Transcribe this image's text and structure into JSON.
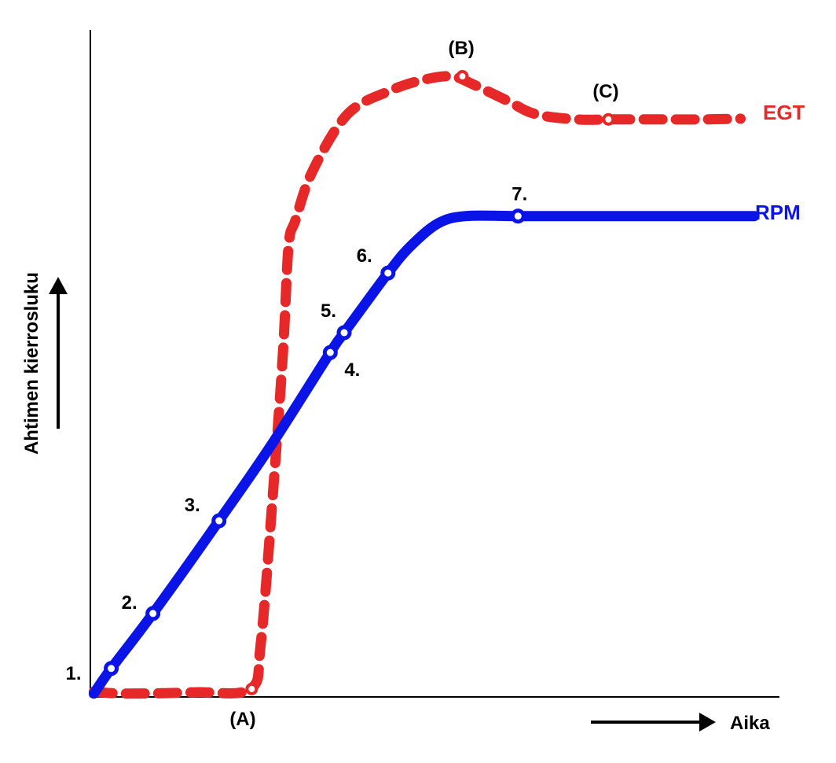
{
  "chart_data": {
    "type": "line",
    "title": "",
    "xlabel": "Aika",
    "ylabel": "Ahtimen kierrosluku",
    "xlim": [
      0,
      100
    ],
    "ylim": [
      0,
      100
    ],
    "grid": false,
    "legend": "inline-right",
    "series": [
      {
        "name": "RPM",
        "color": "#0a14e6",
        "style": "solid",
        "points": [
          [
            0.5,
            0.5
          ],
          [
            3,
            4.3
          ],
          [
            9,
            12.6
          ],
          [
            18.5,
            26.6
          ],
          [
            26,
            38
          ],
          [
            34.5,
            52
          ],
          [
            36.5,
            55
          ],
          [
            42.8,
            64
          ],
          [
            46,
            68
          ],
          [
            50,
            71.5
          ],
          [
            54,
            72.6
          ],
          [
            61.5,
            72.6
          ],
          [
            75,
            72.6
          ],
          [
            95.5,
            72.6
          ]
        ],
        "markers": [
          {
            "label": "1.",
            "x": 3,
            "y": 4.3
          },
          {
            "label": "2.",
            "x": 9,
            "y": 12.6
          },
          {
            "label": "3.",
            "x": 18.5,
            "y": 26.6
          },
          {
            "label": "4.",
            "x": 34.5,
            "y": 52
          },
          {
            "label": "5.",
            "x": 36.5,
            "y": 55
          },
          {
            "label": "6.",
            "x": 42.8,
            "y": 64
          },
          {
            "label": "7.",
            "x": 61.5,
            "y": 72.6
          }
        ]
      },
      {
        "name": "EGT",
        "color": "#e62828",
        "style": "dashed",
        "points": [
          [
            0.5,
            0.8
          ],
          [
            5,
            0.5
          ],
          [
            15,
            0.7
          ],
          [
            23,
            1.2
          ],
          [
            24.5,
            8
          ],
          [
            26.2,
            30
          ],
          [
            27.7,
            52
          ],
          [
            28.5,
            68
          ],
          [
            29.5,
            72
          ],
          [
            32,
            79.5
          ],
          [
            37,
            88
          ],
          [
            43,
            91.5
          ],
          [
            48,
            93.2
          ],
          [
            52,
            93.7
          ],
          [
            55,
            92.5
          ],
          [
            60,
            90
          ],
          [
            64,
            88
          ],
          [
            70,
            87.2
          ],
          [
            75,
            87.2
          ],
          [
            82,
            87.2
          ],
          [
            88,
            87.2
          ],
          [
            93.5,
            87.3
          ]
        ],
        "markers": [
          {
            "label": "(A)",
            "x": 23.2,
            "y": 1.2
          },
          {
            "label": "(B)",
            "x": 53.5,
            "y": 93.7
          },
          {
            "label": "(C)",
            "x": 74.5,
            "y": 87.2
          }
        ]
      }
    ]
  }
}
